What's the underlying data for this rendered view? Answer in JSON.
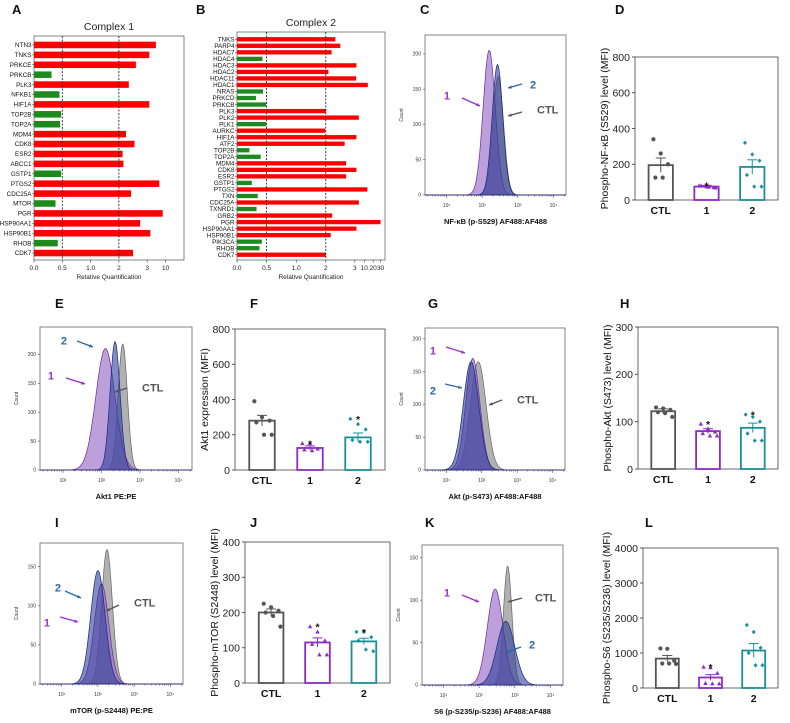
{
  "chart_data": [
    {
      "panel": "A",
      "type": "bar",
      "orientation": "horizontal",
      "title": "Complex 1",
      "xlabel": "Relative Quantification",
      "x_tick_labels": [
        "0.0",
        "0.5",
        "1.0",
        "2",
        "3",
        "10"
      ],
      "x_tick_values": [
        0,
        0.5,
        1,
        2,
        3,
        10
      ],
      "reference_lines": [
        0.5,
        2
      ],
      "colors": {
        "up": "#ff0000",
        "down": "#1e8a1e"
      },
      "categories": [
        "NTN3",
        "TNKS",
        "PRKCE",
        "PRKCB",
        "PLK3",
        "NFKB1",
        "HIF1A",
        "TOP2B",
        "TOP2A",
        "MDM4",
        "CDK8",
        "ESR2",
        "ABCC1",
        "GSTP1",
        "PTGS2",
        "CDC25A",
        "MTOR",
        "PGR",
        "HSP90AA1",
        "HSP90B1",
        "RHOB",
        "CDK7"
      ],
      "values": [
        6.3,
        3.8,
        2.6,
        0.31,
        2.35,
        0.45,
        3.8,
        0.48,
        0.46,
        2.25,
        2.55,
        2.13,
        2.16,
        0.48,
        7.6,
        2.43,
        0.38,
        8.9,
        2.75,
        4.2,
        0.42,
        2.5
      ]
    },
    {
      "panel": "B",
      "type": "bar",
      "orientation": "horizontal",
      "title": "Complex 2",
      "xlabel": "Relative Quantification",
      "x_tick_labels": [
        "0.0",
        "0.5",
        "1.0",
        "2",
        "3",
        "10",
        "20",
        "30"
      ],
      "x_tick_values": [
        0,
        0.5,
        1,
        2,
        3,
        10,
        20,
        30
      ],
      "reference_lines": [
        0.5,
        2
      ],
      "colors": {
        "up": "#ff0000",
        "down": "#1e8a1e"
      },
      "categories": [
        "TNKS",
        "PARP4",
        "HDAC7",
        "HDAC4",
        "HDAC3",
        "HDAC2",
        "HDAC11",
        "HDAC1",
        "NRAS",
        "PRKCD",
        "PRKCB",
        "PLK3",
        "PLK2",
        "PLK1",
        "AURKC",
        "HIF1A",
        "ATF2",
        "TOP2B",
        "TOP2A",
        "MDM4",
        "CDK8",
        "ESR2",
        "GSTP1",
        "PTGS2",
        "TXN",
        "CDC25A",
        "TXNRD1",
        "GRB2",
        "PGR",
        "HSP90AA1",
        "HSP90B1",
        "PIK3CA",
        "RHOB",
        "CDK7"
      ],
      "values": [
        2.33,
        2.5,
        2.2,
        0.43,
        4.2,
        2.09,
        4.0,
        14,
        0.44,
        0.32,
        0.49,
        2.0,
        6,
        0.49,
        1.98,
        4.2,
        2.65,
        0.21,
        0.4,
        2.7,
        4.2,
        2.7,
        0.25,
        13.5,
        0.35,
        6,
        0.33,
        2.22,
        30,
        4.2,
        2.17,
        0.42,
        0.38,
        2.0
      ]
    },
    {
      "panel": "C",
      "type": "area",
      "xscale": "log",
      "xlabel": "NF-κB (p-S529) AF488:AF488",
      "ylabel": "Count",
      "x_tick_labels": [
        "10¹",
        "10²",
        "10³",
        "10⁴"
      ],
      "x_tick_values": [
        10,
        100,
        1000,
        10000
      ],
      "y_tick_labels": [
        "0",
        "50",
        "100",
        "150",
        "200"
      ],
      "y_tick_values": [
        0,
        50,
        100,
        150,
        200
      ],
      "ylim": [
        0,
        220
      ],
      "series": [
        {
          "name": "CTL",
          "color": "#a8a8a8",
          "peak_x": 282,
          "peak_count": 168,
          "spread_log10": 0.15
        },
        {
          "name": "1",
          "color": "#9a6cc8",
          "peak_x": 158,
          "peak_count": 205,
          "spread_log10": 0.17
        },
        {
          "name": "2",
          "color": "#2f3f9a",
          "peak_x": 270,
          "peak_count": 185,
          "spread_log10": 0.15
        }
      ],
      "annotations": [
        "1",
        "2",
        "CTL"
      ]
    },
    {
      "panel": "D",
      "type": "bar",
      "ylabel": "Phospho-NF-κB (S529) level (MFI)",
      "categories": [
        "CTL",
        "1",
        "2"
      ],
      "ylim": [
        0,
        800
      ],
      "y_tick_labels": [
        "0",
        "200",
        "400",
        "600",
        "800"
      ],
      "y_tick_values": [
        0,
        200,
        400,
        600,
        800
      ],
      "values": [
        195,
        75,
        185
      ],
      "sem": [
        40,
        7,
        40
      ],
      "points": [
        [
          340,
          260,
          200,
          125,
          125
        ],
        [
          80,
          75,
          70,
          78,
          72,
          68
        ],
        [
          320,
          255,
          220,
          140,
          75,
          75
        ]
      ],
      "significance": [
        "",
        "*",
        ""
      ],
      "colors": [
        "#555555",
        "#8e2bc4",
        "#1a8f9a"
      ]
    },
    {
      "panel": "E",
      "type": "area",
      "xscale": "log",
      "xlabel": "Akt1 PE:PE",
      "ylabel": "Count",
      "x_tick_labels": [
        "10¹",
        "10²",
        "10³",
        "10⁴"
      ],
      "x_tick_values": [
        10,
        100,
        1000,
        10000
      ],
      "y_tick_labels": [
        "0",
        "50",
        "100",
        "150",
        "200"
      ],
      "y_tick_values": [
        0,
        50,
        100,
        150,
        200
      ],
      "ylim": [
        0,
        240
      ],
      "series": [
        {
          "name": "CTL",
          "color": "#a8a8a8",
          "peak_x": 355,
          "peak_count": 218,
          "spread_log10": 0.12
        },
        {
          "name": "1",
          "color": "#9a6cc8",
          "peak_x": 126,
          "peak_count": 210,
          "spread_log10": 0.25
        },
        {
          "name": "2",
          "color": "#2f3f9a",
          "peak_x": 224,
          "peak_count": 222,
          "spread_log10": 0.13
        }
      ],
      "annotations": [
        "2",
        "1",
        "CTL"
      ]
    },
    {
      "panel": "F",
      "type": "bar",
      "ylabel": "Akt1 expression (MFI)",
      "categories": [
        "CTL",
        "1",
        "2"
      ],
      "ylim": [
        0,
        800
      ],
      "y_tick_labels": [
        "0",
        "200",
        "400",
        "600",
        "800"
      ],
      "y_tick_values": [
        0,
        200,
        400,
        600,
        800
      ],
      "values": [
        280,
        125,
        185
      ],
      "sem": [
        30,
        12,
        25
      ],
      "points": [
        [
          390,
          300,
          280,
          270,
          200,
          200
        ],
        [
          150,
          150,
          120,
          115,
          110
        ],
        [
          290,
          260,
          230,
          170,
          160,
          160
        ]
      ],
      "significance": [
        "",
        "*",
        "*"
      ],
      "colors": [
        "#555555",
        "#8e2bc4",
        "#1a8f9a"
      ]
    },
    {
      "panel": "G",
      "type": "area",
      "xscale": "log",
      "xlabel": "Akt (p-S473) AF488:AF488",
      "ylabel": "Count",
      "x_tick_labels": [
        "10¹",
        "10²",
        "10³",
        "10⁴"
      ],
      "x_tick_values": [
        10,
        100,
        1000,
        10000
      ],
      "y_tick_labels": [
        "0",
        "50",
        "100",
        "150",
        "200"
      ],
      "y_tick_values": [
        0,
        50,
        100,
        150,
        200
      ],
      "ylim": [
        0,
        210
      ],
      "series": [
        {
          "name": "CTL",
          "color": "#a8a8a8",
          "peak_x": 80,
          "peak_count": 165,
          "spread_log10": 0.22
        },
        {
          "name": "1",
          "color": "#9a6cc8",
          "peak_x": 56,
          "peak_count": 170,
          "spread_log10": 0.2
        },
        {
          "name": "2",
          "color": "#2f3f9a",
          "peak_x": 50,
          "peak_count": 165,
          "spread_log10": 0.22
        }
      ],
      "annotations": [
        "1",
        "2",
        "CTL"
      ]
    },
    {
      "panel": "H",
      "type": "bar",
      "ylabel": "Phospho-Akt (S473) level (MFI)",
      "categories": [
        "CTL",
        "1",
        "2"
      ],
      "ylim": [
        0,
        300
      ],
      "y_tick_labels": [
        "0",
        "100",
        "200",
        "300"
      ],
      "y_tick_values": [
        0,
        100,
        200,
        300
      ],
      "values": [
        122,
        80,
        87
      ],
      "sem": [
        5,
        5,
        10
      ],
      "points": [
        [
          130,
          128,
          125,
          120,
          118,
          110
        ],
        [
          95,
          85,
          78,
          75,
          70,
          70
        ],
        [
          115,
          110,
          100,
          75,
          60,
          60
        ]
      ],
      "significance": [
        "",
        "*",
        "*"
      ],
      "colors": [
        "#555555",
        "#8e2bc4",
        "#1a8f9a"
      ]
    },
    {
      "panel": "I",
      "type": "area",
      "xscale": "log",
      "xlabel": "mTOR (p-S2448) PE:PE",
      "ylabel": "Count",
      "x_tick_labels": [
        "10¹",
        "10²",
        "10³",
        "10⁴"
      ],
      "x_tick_values": [
        10,
        100,
        1000,
        10000
      ],
      "y_tick_labels": [
        "0",
        "50",
        "100",
        "150"
      ],
      "y_tick_values": [
        0,
        50,
        100,
        150
      ],
      "ylim": [
        0,
        175
      ],
      "series": [
        {
          "name": "CTL",
          "color": "#a8a8a8",
          "peak_x": 178,
          "peak_count": 172,
          "spread_log10": 0.15
        },
        {
          "name": "1",
          "color": "#9a6cc8",
          "peak_x": 126,
          "peak_count": 128,
          "spread_log10": 0.2
        },
        {
          "name": "2",
          "color": "#2f3f9a",
          "peak_x": 100,
          "peak_count": 145,
          "spread_log10": 0.2
        }
      ],
      "annotations": [
        "2",
        "1",
        "CTL"
      ]
    },
    {
      "panel": "J",
      "type": "bar",
      "ylabel": "Phospho-mTOR (S2448) level (MFI)",
      "categories": [
        "CTL",
        "1",
        "2"
      ],
      "ylim": [
        0,
        400
      ],
      "y_tick_labels": [
        "0",
        "100",
        "200",
        "300",
        "400"
      ],
      "y_tick_values": [
        0,
        100,
        200,
        300,
        400
      ],
      "values": [
        200,
        115,
        118
      ],
      "sem": [
        10,
        13,
        9
      ],
      "points": [
        [
          225,
          215,
          205,
          200,
          190,
          160
        ],
        [
          160,
          145,
          120,
          110,
          80,
          80
        ],
        [
          145,
          145,
          130,
          120,
          95,
          90
        ]
      ],
      "significance": [
        "",
        "*",
        "*"
      ],
      "colors": [
        "#555555",
        "#8e2bc4",
        "#1a8f9a"
      ]
    },
    {
      "panel": "K",
      "type": "area",
      "xscale": "log",
      "xlabel": "S6 (p-S235/p-S236) AF488:AF488",
      "ylabel": "Count",
      "x_tick_labels": [
        "10¹",
        "10²",
        "10³",
        "10⁴"
      ],
      "x_tick_values": [
        10,
        100,
        1000,
        10000
      ],
      "y_tick_labels": [
        "0",
        "50",
        "100",
        "150"
      ],
      "y_tick_values": [
        0,
        50,
        100,
        150
      ],
      "ylim": [
        0,
        160
      ],
      "series": [
        {
          "name": "CTL",
          "color": "#a8a8a8",
          "peak_x": 630,
          "peak_count": 140,
          "spread_log10": 0.12
        },
        {
          "name": "1",
          "color": "#9a6cc8",
          "peak_x": 282,
          "peak_count": 113,
          "spread_log10": 0.22
        },
        {
          "name": "2",
          "color": "#2f3f9a",
          "peak_x": 560,
          "peak_count": 75,
          "spread_log10": 0.25
        }
      ],
      "annotations": [
        "1",
        "CTL",
        "2"
      ]
    },
    {
      "panel": "L",
      "type": "bar",
      "ylabel": "Phospho-S6 (S235/S236) level (MFI)",
      "categories": [
        "CTL",
        "1",
        "2"
      ],
      "ylim": [
        0,
        4000
      ],
      "y_tick_labels": [
        "0",
        "1000",
        "2000",
        "3000",
        "4000"
      ],
      "y_tick_values": [
        0,
        1000,
        2000,
        3000,
        4000
      ],
      "values": [
        840,
        300,
        1070
      ],
      "sem": [
        90,
        80,
        200
      ],
      "points": [
        [
          1130,
          1120,
          780,
          700,
          700,
          690
        ],
        [
          600,
          580,
          420,
          130,
          120,
          120
        ],
        [
          1800,
          1600,
          1150,
          1000,
          650,
          650
        ]
      ],
      "significance": [
        "",
        "*",
        ""
      ],
      "colors": [
        "#555555",
        "#8e2bc4",
        "#1a8f9a"
      ]
    }
  ],
  "annotation_colors": {
    "1": "#9b30d0",
    "2": "#2a6aa8",
    "CTL": "#555555"
  }
}
